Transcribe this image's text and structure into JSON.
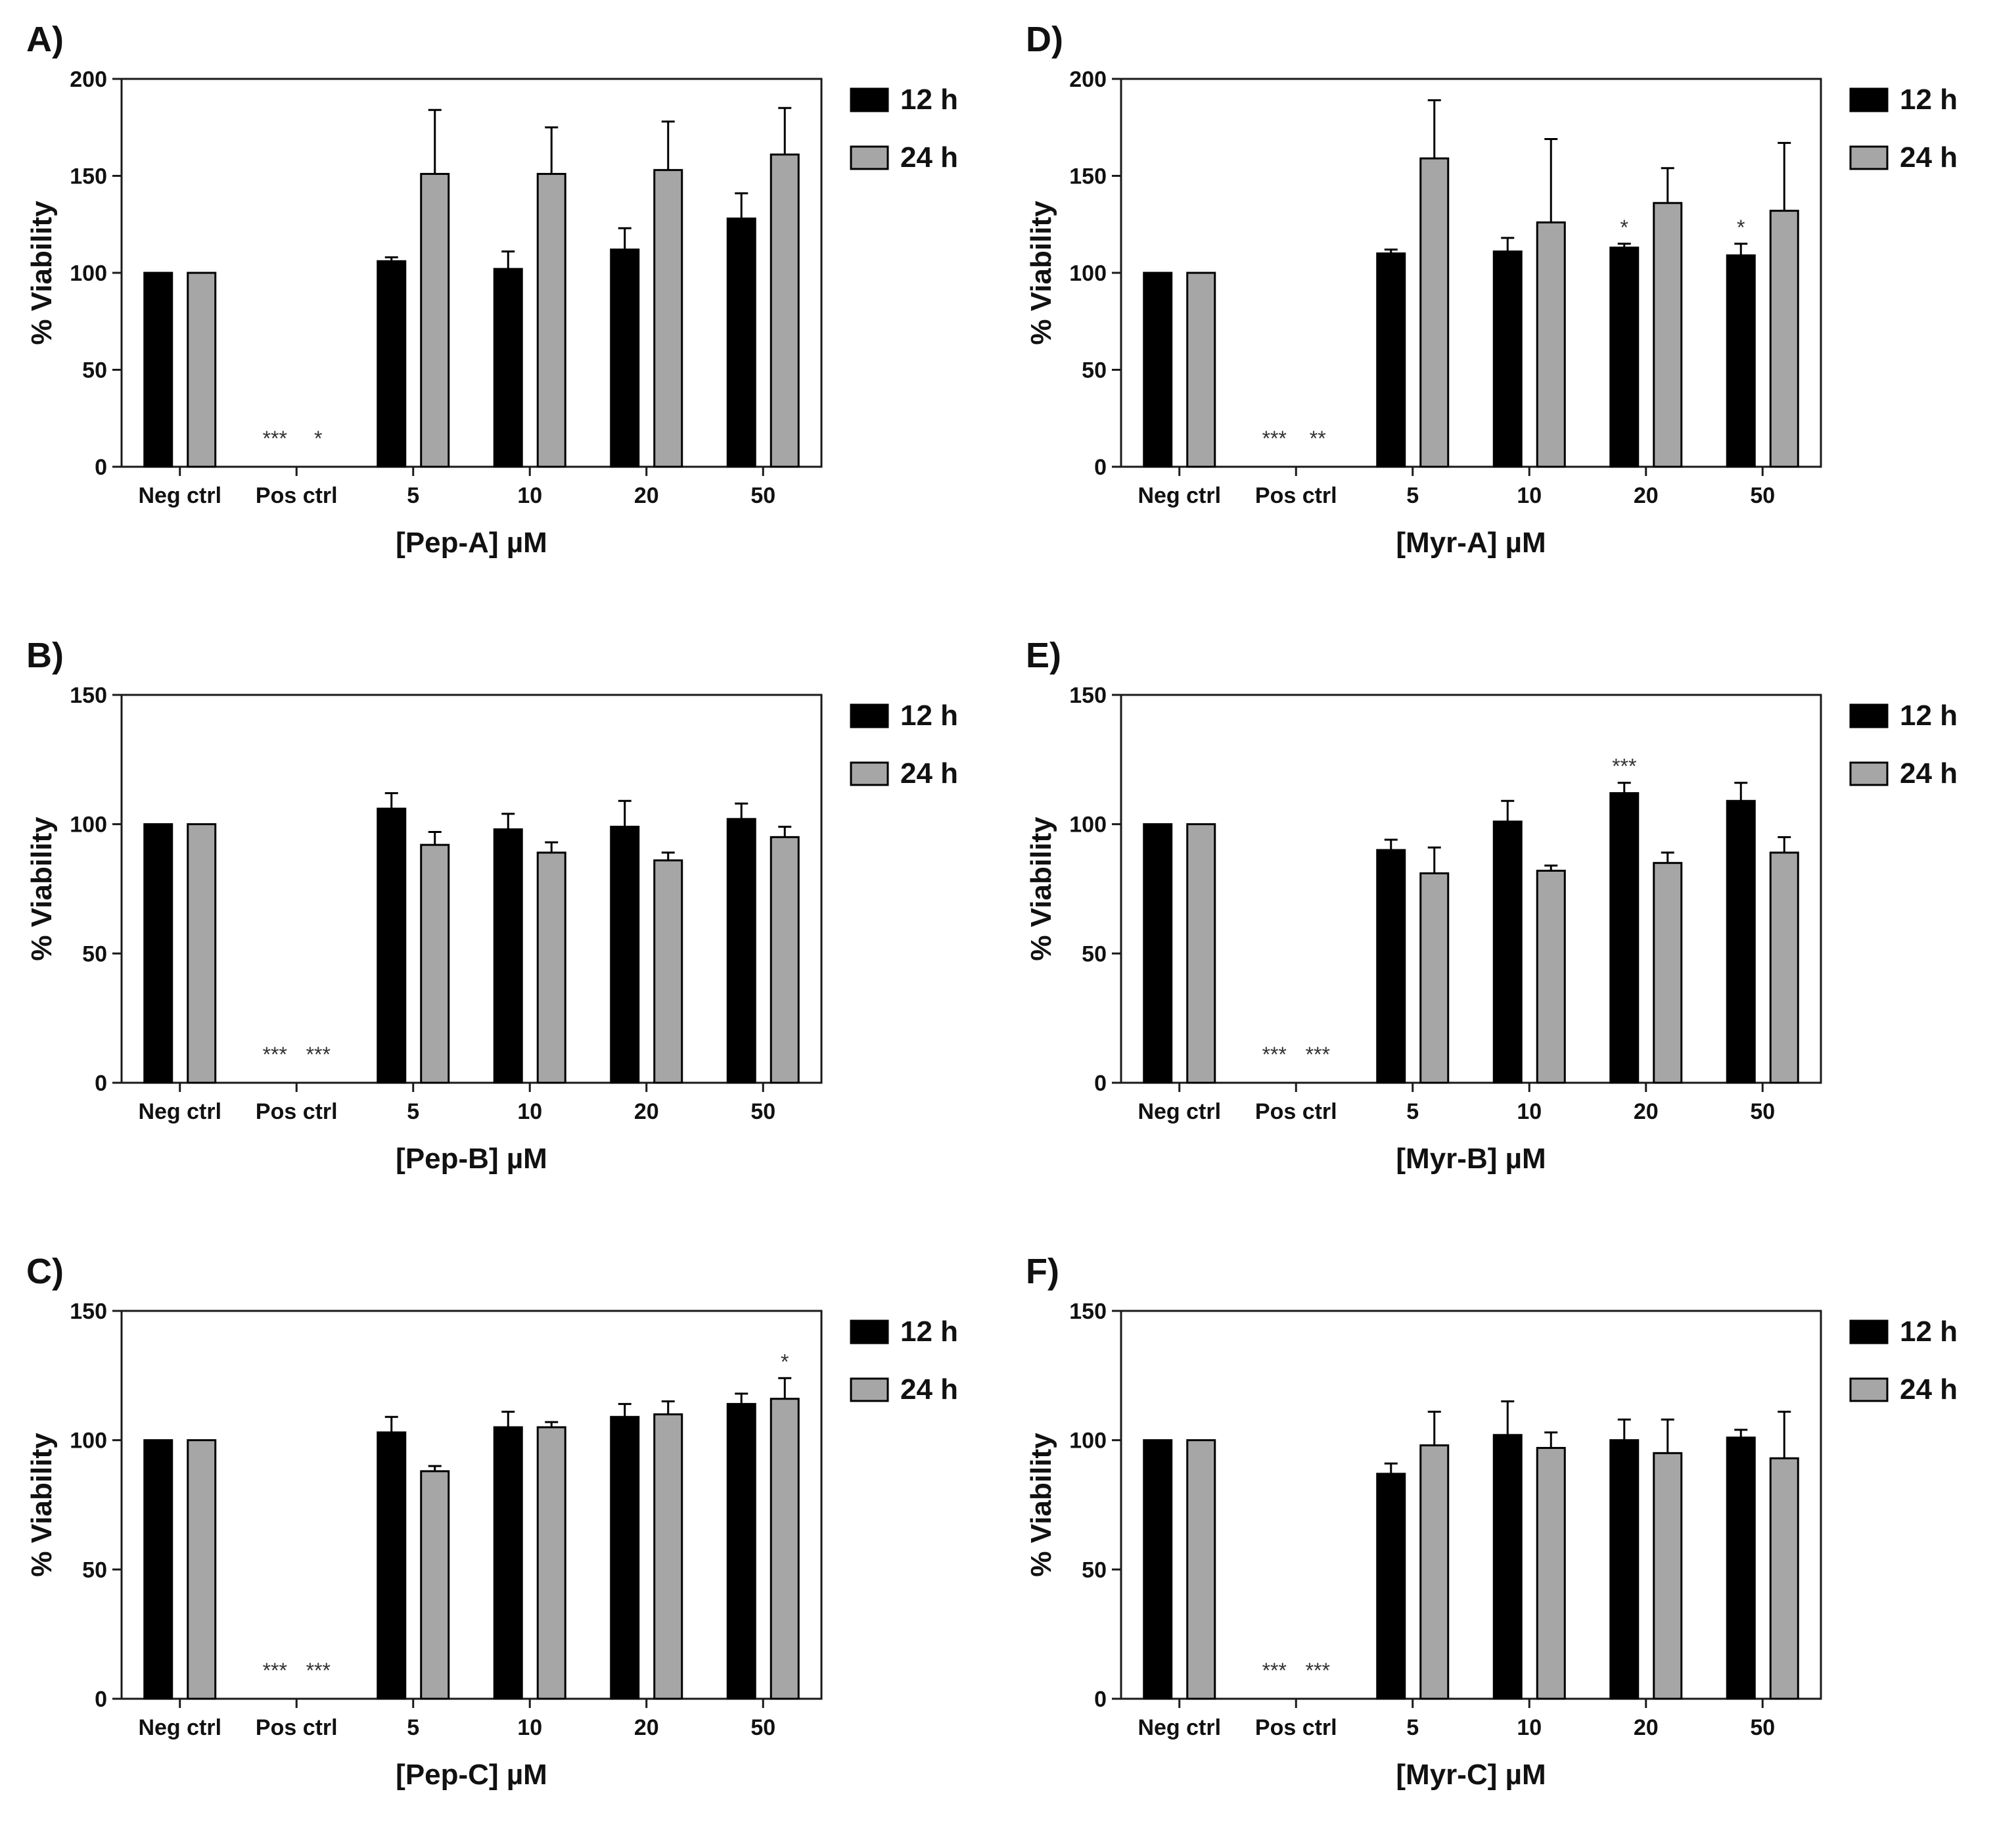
{
  "colors": {
    "series_12h": "#000000",
    "series_24h": "#a6a6a6",
    "axis": "#1a1a1a"
  },
  "chart_data": [
    {
      "panel_label": "A)",
      "type": "bar",
      "categories": [
        "Neg ctrl",
        "Pos ctrl",
        "5",
        "10",
        "20",
        "50"
      ],
      "xlabel": "[Pep-A] µM",
      "ylabel": "% Viability",
      "ylim": [
        0,
        200
      ],
      "yticks": [
        "0",
        "50",
        "100",
        "150",
        "200"
      ],
      "legend": [
        "12 h",
        "24 h"
      ],
      "series": [
        {
          "name": "12 h",
          "values": [
            100,
            0,
            106,
            102,
            112,
            128
          ],
          "errors": [
            0,
            0,
            2,
            9,
            11,
            13
          ],
          "significance": [
            "",
            "***",
            "",
            "",
            "",
            ""
          ]
        },
        {
          "name": "24 h",
          "values": [
            100,
            0,
            151,
            151,
            153,
            161
          ],
          "errors": [
            0,
            0,
            33,
            24,
            25,
            24
          ],
          "significance": [
            "",
            "*",
            "",
            "",
            "",
            ""
          ]
        }
      ]
    },
    {
      "panel_label": "B)",
      "type": "bar",
      "categories": [
        "Neg ctrl",
        "Pos ctrl",
        "5",
        "10",
        "20",
        "50"
      ],
      "xlabel": "[Pep-B] µM",
      "ylabel": "% Viability",
      "ylim": [
        0,
        150
      ],
      "yticks": [
        "0",
        "50",
        "100",
        "150"
      ],
      "legend": [
        "12 h",
        "24 h"
      ],
      "series": [
        {
          "name": "12 h",
          "values": [
            100,
            0,
            106,
            98,
            99,
            102
          ],
          "errors": [
            0,
            0,
            6,
            6,
            10,
            6
          ],
          "significance": [
            "",
            "***",
            "",
            "",
            "",
            ""
          ]
        },
        {
          "name": "24 h",
          "values": [
            100,
            0,
            92,
            89,
            86,
            95
          ],
          "errors": [
            0,
            0,
            5,
            4,
            3,
            4
          ],
          "significance": [
            "",
            "***",
            "",
            "",
            "",
            ""
          ]
        }
      ]
    },
    {
      "panel_label": "C)",
      "type": "bar",
      "categories": [
        "Neg ctrl",
        "Pos ctrl",
        "5",
        "10",
        "20",
        "50"
      ],
      "xlabel": "[Pep-C] µM",
      "ylabel": "% Viability",
      "ylim": [
        0,
        150
      ],
      "yticks": [
        "0",
        "50",
        "100",
        "150"
      ],
      "legend": [
        "12 h",
        "24 h"
      ],
      "series": [
        {
          "name": "12 h",
          "values": [
            100,
            0,
            103,
            105,
            109,
            114
          ],
          "errors": [
            0,
            0,
            6,
            6,
            5,
            4
          ],
          "significance": [
            "",
            "***",
            "",
            "",
            "",
            ""
          ]
        },
        {
          "name": "24 h",
          "values": [
            100,
            0,
            88,
            105,
            110,
            116
          ],
          "errors": [
            0,
            0,
            2,
            2,
            5,
            8
          ],
          "significance": [
            "",
            "***",
            "",
            "",
            "",
            "*"
          ]
        }
      ]
    },
    {
      "panel_label": "D)",
      "type": "bar",
      "categories": [
        "Neg ctrl",
        "Pos ctrl",
        "5",
        "10",
        "20",
        "50"
      ],
      "xlabel": "[Myr-A] µM",
      "ylabel": "% Viability",
      "ylim": [
        0,
        200
      ],
      "yticks": [
        "0",
        "50",
        "100",
        "150",
        "200"
      ],
      "legend": [
        "12 h",
        "24 h"
      ],
      "series": [
        {
          "name": "12 h",
          "values": [
            100,
            0,
            110,
            111,
            113,
            109
          ],
          "errors": [
            0,
            0,
            2,
            7,
            2,
            6
          ],
          "significance": [
            "",
            "***",
            "",
            "",
            "*",
            "*"
          ]
        },
        {
          "name": "24 h",
          "values": [
            100,
            0,
            159,
            126,
            136,
            132
          ],
          "errors": [
            0,
            0,
            30,
            43,
            18,
            35
          ],
          "significance": [
            "",
            "**",
            "",
            "",
            "",
            ""
          ]
        }
      ]
    },
    {
      "panel_label": "E)",
      "type": "bar",
      "categories": [
        "Neg ctrl",
        "Pos ctrl",
        "5",
        "10",
        "20",
        "50"
      ],
      "xlabel": "[Myr-B] µM",
      "ylabel": "% Viability",
      "ylim": [
        0,
        150
      ],
      "yticks": [
        "0",
        "50",
        "100",
        "150"
      ],
      "legend": [
        "12 h",
        "24 h"
      ],
      "series": [
        {
          "name": "12 h",
          "values": [
            100,
            0,
            90,
            101,
            112,
            109
          ],
          "errors": [
            0,
            0,
            4,
            8,
            4,
            7
          ],
          "significance": [
            "",
            "***",
            "",
            "",
            "***",
            ""
          ]
        },
        {
          "name": "24 h",
          "values": [
            100,
            0,
            81,
            82,
            85,
            89
          ],
          "errors": [
            0,
            0,
            10,
            2,
            4,
            6
          ],
          "significance": [
            "",
            "***",
            "",
            "",
            "",
            ""
          ]
        }
      ]
    },
    {
      "panel_label": "F)",
      "type": "bar",
      "categories": [
        "Neg ctrl",
        "Pos ctrl",
        "5",
        "10",
        "20",
        "50"
      ],
      "xlabel": "[Myr-C] µM",
      "ylabel": "% Viability",
      "ylim": [
        0,
        150
      ],
      "yticks": [
        "0",
        "50",
        "100",
        "150"
      ],
      "legend": [
        "12 h",
        "24 h"
      ],
      "series": [
        {
          "name": "12 h",
          "values": [
            100,
            0,
            87,
            102,
            100,
            101
          ],
          "errors": [
            0,
            0,
            4,
            13,
            8,
            3
          ],
          "significance": [
            "",
            "***",
            "",
            "",
            "",
            ""
          ]
        },
        {
          "name": "24 h",
          "values": [
            100,
            0,
            98,
            97,
            95,
            93
          ],
          "errors": [
            0,
            0,
            13,
            6,
            13,
            18
          ],
          "significance": [
            "",
            "***",
            "",
            "",
            "",
            ""
          ]
        }
      ]
    }
  ]
}
